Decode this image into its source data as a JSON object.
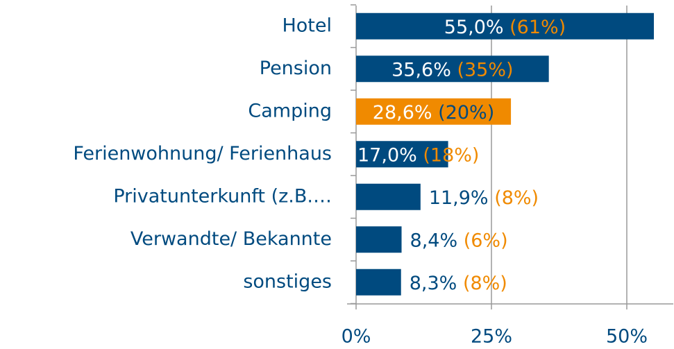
{
  "chart_data": {
    "type": "bar",
    "orientation": "horizontal",
    "categories": [
      "Hotel",
      "Pension",
      "Camping",
      "Ferienwohnung/ Ferienhaus",
      "Privatunterkunft (z.B.…",
      "Verwandte/ Bekannte",
      "sonstiges"
    ],
    "values": [
      55.0,
      35.6,
      28.6,
      17.0,
      11.9,
      8.4,
      8.3
    ],
    "value_labels": [
      "55,0%",
      "35,6%",
      "28,6%",
      "17,0%",
      "11,9%",
      "8,4%",
      "8,3%"
    ],
    "comparison_values": [
      61,
      35,
      20,
      18,
      8,
      6,
      8
    ],
    "comparison_labels": [
      "(61%)",
      "(35%)",
      "(20%)",
      "(18%)",
      "(8%)",
      "(6%)",
      "(8%)"
    ],
    "colors": [
      "#004a7f",
      "#004a7f",
      "#f08a00",
      "#004a7f",
      "#004a7f",
      "#004a7f",
      "#004a7f"
    ],
    "xlim": [
      0,
      58.5
    ],
    "xticks": [
      {
        "value": 0,
        "label": "0%"
      },
      {
        "value": 25,
        "label": "25%"
      },
      {
        "value": 50,
        "label": "50%"
      }
    ],
    "grid": true
  }
}
